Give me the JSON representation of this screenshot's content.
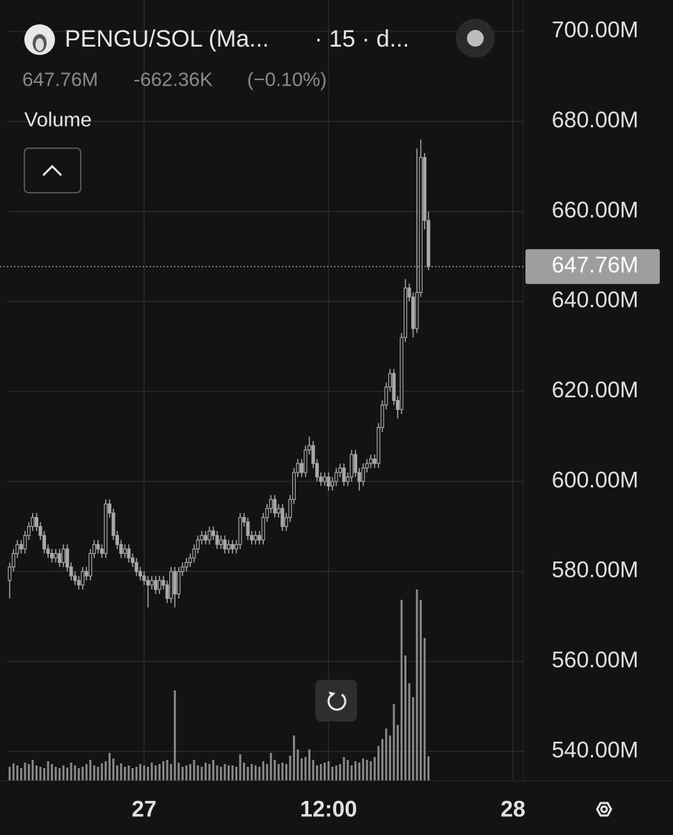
{
  "header": {
    "symbol": "PENGU/SOL (Ma...",
    "interval": "· 15 · d...",
    "price": "647.76M",
    "change": "-662.36K",
    "change_pct": "(−0.10%)",
    "indicator": "Volume"
  },
  "chart_data": {
    "type": "candlestick",
    "xlim": [
      -0.7,
      133.7
    ],
    "xticks": [
      {
        "value": 35,
        "label": "27"
      },
      {
        "value": 83,
        "label": "12:00"
      },
      {
        "value": 131,
        "label": "28"
      }
    ],
    "ylim": [
      533.5,
      707
    ],
    "yticks": [
      {
        "value": 540,
        "label": "540.00M"
      },
      {
        "value": 560,
        "label": "560.00M"
      },
      {
        "value": 580,
        "label": "580.00M"
      },
      {
        "value": 600,
        "label": "600.00M"
      },
      {
        "value": 620,
        "label": "620.00M"
      },
      {
        "value": 640,
        "label": "640.00M"
      },
      {
        "value": 660,
        "label": "660.00M"
      },
      {
        "value": 680,
        "label": "680.00M"
      },
      {
        "value": 700,
        "label": "700.00M"
      }
    ],
    "grid": true,
    "color": "#a8a8a8",
    "last_price": {
      "value": 647.76,
      "label": "647.76M"
    },
    "open": [
      578,
      581,
      584,
      586,
      585,
      588,
      590,
      592,
      590,
      588,
      585,
      584,
      583,
      584,
      582,
      585,
      581,
      579,
      578,
      577,
      580,
      579,
      584,
      586,
      585,
      584,
      595,
      593,
      588,
      586,
      584,
      585,
      583,
      582,
      580,
      579,
      578,
      577,
      578,
      576,
      578,
      577,
      574,
      580,
      575,
      580,
      581,
      582,
      583,
      585,
      587,
      588,
      587,
      589,
      588,
      586,
      587,
      585,
      586,
      585,
      586,
      592,
      591,
      588,
      587,
      588,
      587,
      592,
      594,
      596,
      593,
      594,
      590,
      592,
      596,
      602,
      604,
      602,
      607,
      608,
      604,
      601,
      600,
      601,
      599,
      600,
      602,
      603,
      600,
      601,
      606,
      602,
      600,
      603,
      604,
      605,
      604,
      612,
      617,
      621,
      624,
      618,
      616,
      632,
      643,
      641,
      634,
      642,
      672,
      658
    ],
    "high": [
      582,
      585,
      587,
      587,
      589,
      591,
      593,
      593,
      591,
      589,
      586,
      585,
      585,
      585,
      586,
      586,
      582,
      580,
      579,
      581,
      581,
      585,
      587,
      587,
      586,
      596,
      596,
      594,
      589,
      587,
      586,
      586,
      584,
      583,
      581,
      580,
      579,
      579,
      579,
      579,
      579,
      578,
      581,
      581,
      581,
      582,
      583,
      584,
      586,
      588,
      589,
      589,
      590,
      590,
      589,
      588,
      588,
      587,
      587,
      587,
      593,
      593,
      592,
      589,
      589,
      589,
      593,
      595,
      597,
      597,
      595,
      595,
      593,
      597,
      603,
      605,
      605,
      608,
      610,
      609,
      605,
      602,
      602,
      602,
      601,
      603,
      604,
      604,
      602,
      607,
      607,
      603,
      604,
      605,
      606,
      606,
      613,
      618,
      622,
      625,
      625,
      619,
      633,
      645,
      644,
      642,
      674,
      676,
      673,
      660
    ],
    "low": [
      574,
      580,
      583,
      584,
      584,
      587,
      589,
      589,
      587,
      584,
      583,
      582,
      582,
      581,
      581,
      580,
      578,
      577,
      576,
      576,
      578,
      578,
      583,
      584,
      583,
      583,
      592,
      587,
      585,
      583,
      583,
      582,
      581,
      579,
      578,
      577,
      572,
      576,
      575,
      575,
      576,
      573,
      573,
      572,
      574,
      579,
      580,
      581,
      582,
      584,
      586,
      586,
      586,
      587,
      585,
      585,
      584,
      584,
      584,
      584,
      585,
      590,
      587,
      586,
      586,
      586,
      586,
      591,
      593,
      592,
      592,
      589,
      589,
      591,
      595,
      601,
      601,
      601,
      606,
      603,
      600,
      599,
      599,
      598,
      598,
      599,
      601,
      599,
      599,
      600,
      601,
      598,
      599,
      602,
      603,
      603,
      603,
      611,
      616,
      620,
      617,
      614,
      615,
      631,
      640,
      632,
      633,
      641,
      656,
      647
    ],
    "close": [
      581,
      584,
      586,
      585,
      588,
      590,
      592,
      590,
      588,
      585,
      584,
      583,
      584,
      582,
      585,
      581,
      579,
      578,
      577,
      580,
      579,
      584,
      586,
      585,
      584,
      595,
      593,
      588,
      586,
      584,
      585,
      583,
      582,
      580,
      579,
      578,
      577,
      578,
      576,
      578,
      577,
      574,
      580,
      575,
      580,
      581,
      582,
      583,
      585,
      587,
      588,
      587,
      589,
      588,
      586,
      587,
      585,
      586,
      585,
      586,
      592,
      591,
      588,
      587,
      588,
      587,
      592,
      594,
      596,
      593,
      594,
      590,
      592,
      596,
      602,
      604,
      602,
      607,
      608,
      604,
      601,
      600,
      601,
      599,
      600,
      602,
      603,
      600,
      601,
      606,
      602,
      600,
      603,
      604,
      605,
      604,
      612,
      617,
      621,
      624,
      618,
      616,
      632,
      643,
      641,
      634,
      642,
      672,
      658,
      647.76
    ],
    "volume": [
      20,
      25,
      22,
      18,
      26,
      24,
      30,
      22,
      20,
      18,
      28,
      24,
      20,
      18,
      22,
      19,
      26,
      22,
      18,
      20,
      24,
      30,
      22,
      20,
      25,
      28,
      40,
      32,
      22,
      25,
      20,
      22,
      18,
      20,
      24,
      22,
      20,
      26,
      22,
      24,
      28,
      30,
      24,
      130,
      26,
      20,
      22,
      24,
      30,
      22,
      20,
      26,
      24,
      30,
      22,
      20,
      24,
      22,
      22,
      20,
      38,
      26,
      20,
      24,
      22,
      20,
      28,
      24,
      40,
      30,
      24,
      26,
      24,
      36,
      65,
      45,
      32,
      34,
      45,
      30,
      22,
      24,
      26,
      28,
      20,
      22,
      24,
      34,
      30,
      22,
      28,
      26,
      32,
      30,
      28,
      34,
      50,
      60,
      75,
      65,
      110,
      80,
      260,
      180,
      140,
      120,
      275,
      260,
      205,
      35
    ]
  }
}
